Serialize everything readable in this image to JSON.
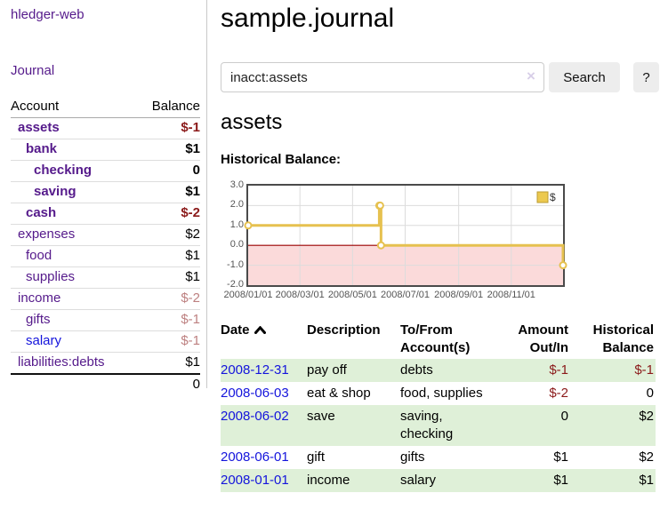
{
  "app": {
    "title": "hledger-web",
    "nav_journal": "Journal"
  },
  "sidebar": {
    "table": {
      "headers": [
        "Account",
        "Balance"
      ]
    },
    "accounts": [
      {
        "name": "assets",
        "balance": "$-1",
        "level": 1,
        "bold": true,
        "value_style": "neg-strong"
      },
      {
        "name": "bank",
        "balance": "$1",
        "level": 2,
        "bold": true,
        "value_style": "pos"
      },
      {
        "name": "checking",
        "balance": "0",
        "level": 3,
        "bold": true,
        "value_style": "pos"
      },
      {
        "name": "saving",
        "balance": "$1",
        "level": 3,
        "bold": true,
        "value_style": "pos"
      },
      {
        "name": "cash",
        "balance": "$-2",
        "level": 2,
        "bold": true,
        "value_style": "neg-strong"
      },
      {
        "name": "expenses",
        "balance": "$2",
        "level": 1,
        "bold": false,
        "value_style": "pos"
      },
      {
        "name": "food",
        "balance": "$1",
        "level": 2,
        "bold": false,
        "value_style": "pos"
      },
      {
        "name": "supplies",
        "balance": "$1",
        "level": 2,
        "bold": false,
        "value_style": "pos"
      },
      {
        "name": "income",
        "balance": "$-2",
        "level": 1,
        "bold": false,
        "value_style": "neg-muted"
      },
      {
        "name": "gifts",
        "balance": "$-1",
        "level": 2,
        "bold": false,
        "value_style": "neg-muted"
      },
      {
        "name": "salary",
        "balance": "$-1",
        "level": 2,
        "bold": false,
        "value_style": "neg-muted",
        "link_style": "blue"
      },
      {
        "name": "liabilities:debts",
        "balance": "$1",
        "level": 1,
        "bold": false,
        "value_style": "pos"
      }
    ],
    "total": "0"
  },
  "main": {
    "title": "sample.journal",
    "search": {
      "value": "inacct:assets",
      "clear_icon": "×",
      "button": "Search",
      "help_button": "?"
    },
    "account_heading": "assets",
    "chart_label": "Historical Balance:"
  },
  "chart_data": {
    "type": "line",
    "style": "step",
    "title": "Historical Balance of assets",
    "series": [
      {
        "name": "$",
        "points": [
          [
            "2008-01-01",
            1
          ],
          [
            "2008-06-01",
            2
          ],
          [
            "2008-06-02",
            2
          ],
          [
            "2008-06-03",
            0
          ],
          [
            "2008-12-31",
            -1
          ]
        ]
      }
    ],
    "ylim": [
      -2,
      3
    ],
    "y_ticks": [
      "3.0",
      "2.0",
      "1.0",
      "0.0",
      "-1.0",
      "-2.0"
    ],
    "x_ticks": [
      "2008/01/01",
      "2008/03/01",
      "2008/05/01",
      "2008/07/01",
      "2008/09/01",
      "2008/11/01"
    ],
    "legend": "$",
    "legend_position": "top-right",
    "grid": true,
    "colors": {
      "line": "#e6c14f",
      "marker_fill": "#ffffff",
      "negative_region": "#fbdada",
      "zero_line": "#990000",
      "grid_line": "#dcdcdc",
      "border": "#4a4a4a",
      "legend_swatch": "#ecc94f"
    }
  },
  "register": {
    "headers": [
      "Date",
      "Description",
      "To/From Account(s)",
      "Amount Out/In",
      "Historical Balance"
    ],
    "sort_icon": "chevron-up",
    "rows": [
      {
        "date": "2008-12-31",
        "description": "pay off",
        "accounts": "debts",
        "amount": "$-1",
        "balance": "$-1"
      },
      {
        "date": "2008-06-03",
        "description": "eat & shop",
        "accounts": "food, supplies",
        "amount": "$-2",
        "balance": "0"
      },
      {
        "date": "2008-06-02",
        "description": "save",
        "accounts": "saving, checking",
        "amount": "0",
        "balance": "$2"
      },
      {
        "date": "2008-06-01",
        "description": "gift",
        "accounts": "gifts",
        "amount": "$1",
        "balance": "$2"
      },
      {
        "date": "2008-01-01",
        "description": "income",
        "accounts": "salary",
        "amount": "$1",
        "balance": "$1"
      }
    ]
  }
}
